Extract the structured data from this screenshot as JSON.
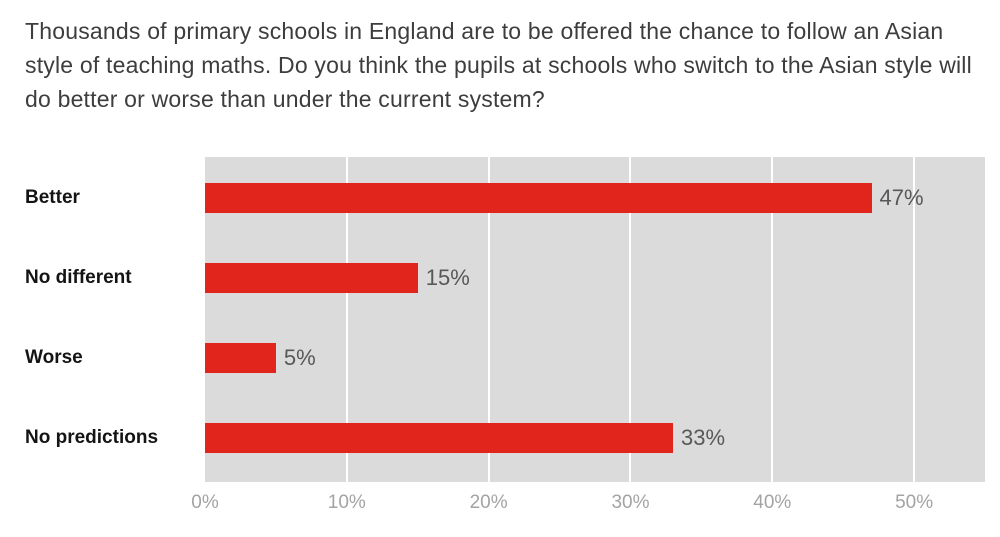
{
  "title": "Thousands of primary schools in England are to be offered the chance to follow an Asian style of teaching maths. Do you think the pupils at schools who switch to the Asian style will do better or worse than under the current system?",
  "chart_data": {
    "type": "bar",
    "orientation": "horizontal",
    "title": "Thousands of primary schools in England are to be offered the chance to follow an Asian style of teaching maths. Do you think the pupils at schools who switch to the Asian style will do better or worse than under the current system?",
    "categories": [
      "Better",
      "No different",
      "Worse",
      "No predictions"
    ],
    "values": [
      47,
      15,
      5,
      33
    ],
    "value_labels": [
      "47%",
      "15%",
      "5%",
      "33%"
    ],
    "xlabel": "",
    "ylabel": "",
    "xlim": [
      0,
      55
    ],
    "xticks": [
      0,
      10,
      20,
      30,
      40,
      50
    ],
    "xtick_labels": [
      "0%",
      "10%",
      "20%",
      "30%",
      "40%",
      "50%"
    ],
    "grid": "vertical white gridlines on gray plot background",
    "legend": "none",
    "colors": {
      "bar": "#e2251c",
      "plot_background": "#dbdbdb",
      "gridline": "#ffffff",
      "title_text": "#3d3d3d",
      "category_label": "#141414",
      "value_label": "#58585a",
      "tick_label": "#a3a3a3"
    }
  }
}
